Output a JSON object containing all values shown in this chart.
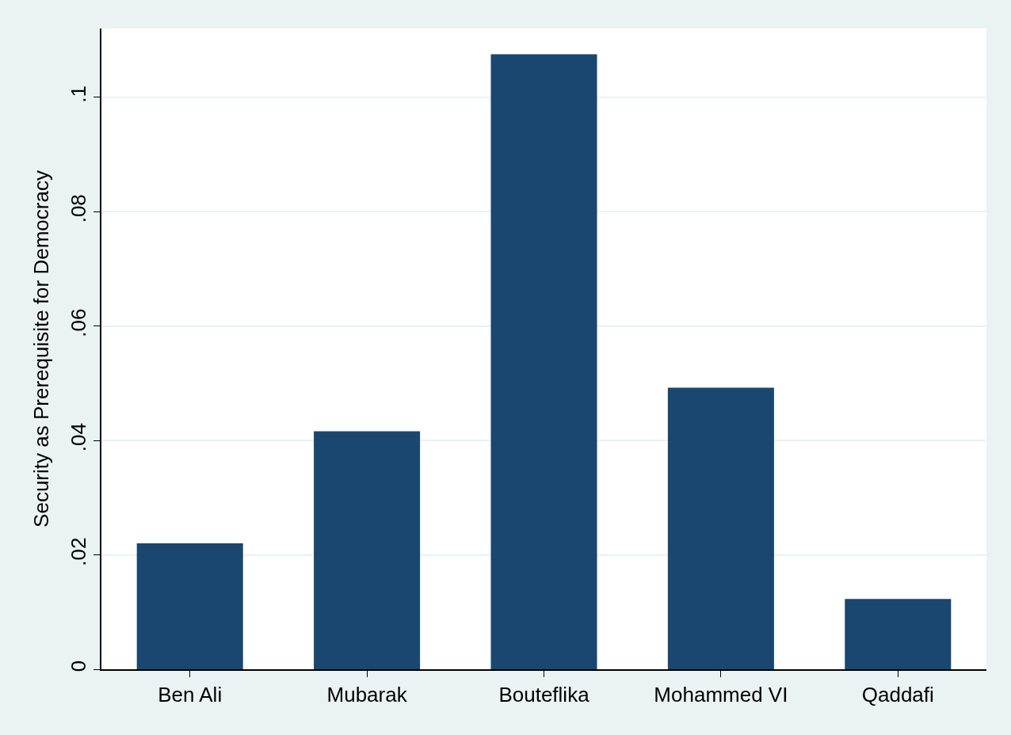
{
  "chart_data": {
    "type": "bar",
    "ylabel": "Security as Prerequisite for Democracy",
    "categories": [
      "Ben Ali",
      "Mubarak",
      "Bouteflika",
      "Mohammed VI",
      "Qaddafi"
    ],
    "values": [
      0.022,
      0.0416,
      0.1075,
      0.0492,
      0.0123
    ],
    "color": "#1a476f",
    "ylim": [
      0,
      0.112
    ],
    "yticks": [
      0,
      {
        "value": 0.02,
        "label": ".02"
      },
      {
        "value": 0.04,
        "label": ".04"
      },
      {
        "value": 0.06,
        "label": ".06"
      },
      {
        "value": 0.08,
        "label": ".08"
      },
      {
        "value": 0.1,
        "label": ".1"
      }
    ],
    "grid": "y"
  }
}
